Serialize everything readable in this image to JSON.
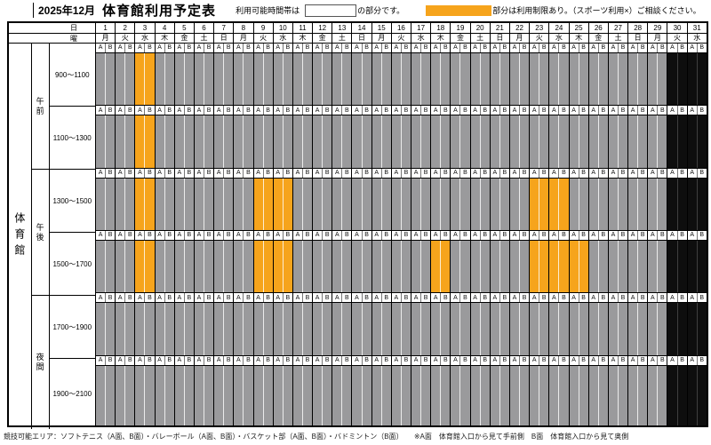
{
  "title": {
    "month": "2025年12月",
    "name": "体育館利用予定表"
  },
  "legend": {
    "available_pre": "利用可能時間帯は",
    "available_post": "の部分です。",
    "restricted_post": "部分は利用制限あり。（スポーツ利用×）ご相談ください。"
  },
  "corner": {
    "day_label": "日",
    "dow_label": "曜"
  },
  "facility": "体育館",
  "subcolumns": [
    "A",
    "B"
  ],
  "days": [
    {
      "num": "1",
      "dow": "月"
    },
    {
      "num": "2",
      "dow": "火"
    },
    {
      "num": "3",
      "dow": "水"
    },
    {
      "num": "4",
      "dow": "木"
    },
    {
      "num": "5",
      "dow": "金"
    },
    {
      "num": "6",
      "dow": "土"
    },
    {
      "num": "7",
      "dow": "日"
    },
    {
      "num": "8",
      "dow": "月"
    },
    {
      "num": "9",
      "dow": "火"
    },
    {
      "num": "10",
      "dow": "水"
    },
    {
      "num": "11",
      "dow": "木"
    },
    {
      "num": "12",
      "dow": "金"
    },
    {
      "num": "13",
      "dow": "土"
    },
    {
      "num": "14",
      "dow": "日"
    },
    {
      "num": "15",
      "dow": "月"
    },
    {
      "num": "16",
      "dow": "火"
    },
    {
      "num": "17",
      "dow": "水"
    },
    {
      "num": "18",
      "dow": "木"
    },
    {
      "num": "19",
      "dow": "金"
    },
    {
      "num": "20",
      "dow": "土"
    },
    {
      "num": "21",
      "dow": "日"
    },
    {
      "num": "22",
      "dow": "月"
    },
    {
      "num": "23",
      "dow": "火"
    },
    {
      "num": "24",
      "dow": "水"
    },
    {
      "num": "25",
      "dow": "木"
    },
    {
      "num": "26",
      "dow": "金"
    },
    {
      "num": "27",
      "dow": "土"
    },
    {
      "num": "28",
      "dow": "日"
    },
    {
      "num": "29",
      "dow": "月"
    },
    {
      "num": "30",
      "dow": "火"
    },
    {
      "num": "31",
      "dow": "水"
    }
  ],
  "closed_days": [
    30,
    31
  ],
  "periods": [
    {
      "label": "午前",
      "slots": [
        0,
        1
      ]
    },
    {
      "label": "午後",
      "slots": [
        2,
        3
      ]
    },
    {
      "label": "夜間",
      "slots": [
        4,
        5
      ]
    }
  ],
  "time_slots": [
    {
      "time": "900～1100",
      "restricted_days": [
        3
      ]
    },
    {
      "time": "1100～1300",
      "restricted_days": [
        3
      ]
    },
    {
      "time": "1300～1500",
      "restricted_days": [
        3,
        9,
        10,
        23,
        24
      ]
    },
    {
      "time": "1500～1700",
      "restricted_days": [
        3,
        9,
        10,
        18,
        23,
        24,
        25
      ]
    },
    {
      "time": "1700～1900",
      "restricted_days": []
    },
    {
      "time": "1900～2100",
      "restricted_days": []
    }
  ],
  "status_colors": {
    "available": "#FFFFFF",
    "unavailable": "#9A9A9C",
    "restricted": "#F6A41C",
    "closed": "#0E0E0E"
  },
  "footer": {
    "areas": "競技可能エリア：ソフトテニス（A面、B面）・バレーボール（A面、B面）・バスケット部（A面、B面）・バドミントン（B面）",
    "sides": "※A面　体育館入口から見て手前側　B面　体育館入口から見て奥側"
  }
}
